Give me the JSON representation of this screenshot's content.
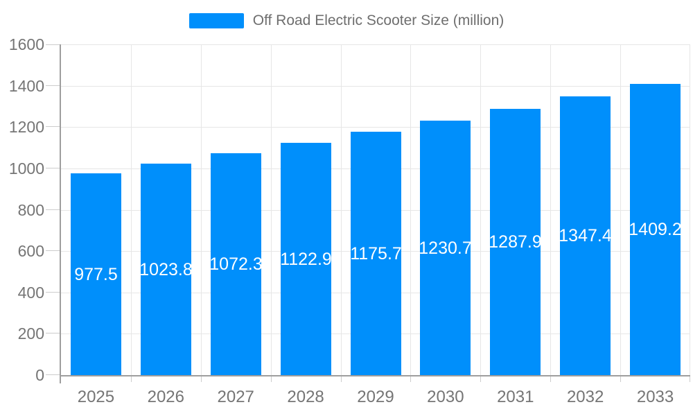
{
  "legend": {
    "label": "Off Road Electric Scooter Size (million)",
    "swatch_color": "#008FFB"
  },
  "colors": {
    "bar": "#008FFB",
    "grid": "#e6e6e6",
    "tick": "#cccccc",
    "axis": "#9e9e9e",
    "axis_label_text": "#757575",
    "bar_label_text": "#ffffff",
    "background": "#ffffff"
  },
  "chart_data": {
    "type": "bar",
    "title": "Off Road Electric Scooter Size (million)",
    "series_name": "Off Road Electric Scooter Size (million)",
    "categories": [
      "2025",
      "2026",
      "2027",
      "2028",
      "2029",
      "2030",
      "2031",
      "2032",
      "2033"
    ],
    "values": [
      977.5,
      1023.8,
      1072.3,
      1122.9,
      1175.7,
      1230.7,
      1287.9,
      1347.4,
      1409.2
    ],
    "xlabel": "",
    "ylabel": "",
    "ylim": [
      0,
      1600
    ],
    "y_ticks": [
      0,
      200,
      400,
      600,
      800,
      1000,
      1200,
      1400,
      1600
    ],
    "grid": true,
    "legend_position": "top",
    "bar_value_labels_visible": true
  }
}
